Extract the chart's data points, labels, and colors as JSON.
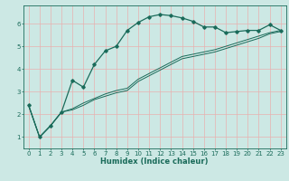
{
  "xlabel": "Humidex (Indice chaleur)",
  "background_color": "#cce8e4",
  "grid_color": "#e8b0b0",
  "line_color": "#1a6b5a",
  "x_data": [
    0,
    1,
    2,
    3,
    4,
    5,
    6,
    7,
    8,
    9,
    10,
    11,
    12,
    13,
    14,
    15,
    16,
    17,
    18,
    19,
    20,
    21,
    22,
    23
  ],
  "line1_y": [
    2.4,
    1.0,
    1.5,
    2.1,
    3.5,
    3.2,
    4.2,
    4.8,
    5.0,
    5.7,
    6.05,
    6.3,
    6.4,
    6.35,
    6.25,
    6.1,
    5.85,
    5.85,
    5.6,
    5.65,
    5.7,
    5.7,
    5.95,
    5.7
  ],
  "line2_y": [
    2.4,
    1.0,
    1.5,
    2.1,
    2.25,
    2.5,
    2.7,
    2.9,
    3.05,
    3.15,
    3.55,
    3.8,
    4.05,
    4.3,
    4.55,
    4.65,
    4.75,
    4.85,
    5.0,
    5.15,
    5.3,
    5.45,
    5.6,
    5.7
  ],
  "line3_y": [
    2.4,
    1.0,
    1.5,
    2.1,
    2.2,
    2.4,
    2.65,
    2.8,
    2.95,
    3.05,
    3.45,
    3.7,
    3.95,
    4.2,
    4.45,
    4.55,
    4.65,
    4.75,
    4.9,
    5.05,
    5.2,
    5.35,
    5.55,
    5.65
  ],
  "xlim": [
    -0.5,
    23.5
  ],
  "ylim": [
    0.5,
    6.8
  ],
  "xticks": [
    0,
    1,
    2,
    3,
    4,
    5,
    6,
    7,
    8,
    9,
    10,
    11,
    12,
    13,
    14,
    15,
    16,
    17,
    18,
    19,
    20,
    21,
    22,
    23
  ],
  "yticks": [
    1,
    2,
    3,
    4,
    5,
    6
  ],
  "axis_fontsize": 6.0,
  "tick_fontsize": 5.0
}
